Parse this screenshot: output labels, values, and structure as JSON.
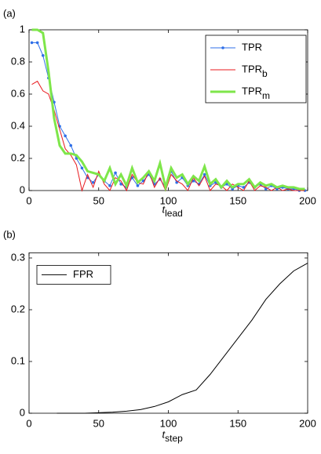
{
  "chart_data": [
    {
      "type": "line",
      "panel_label": "(a)",
      "xlabel": "t",
      "xlabel_subscript": "lead",
      "xlim": [
        0,
        200
      ],
      "ylim": [
        0,
        1
      ],
      "xticks": [
        0,
        50,
        100,
        150,
        200
      ],
      "yticks": [
        0,
        0.2,
        0.4,
        0.6,
        0.8,
        1
      ],
      "legend": "upper right",
      "x": [
        2,
        6,
        10,
        14,
        18,
        22,
        26,
        30,
        34,
        38,
        42,
        46,
        50,
        54,
        58,
        62,
        66,
        70,
        74,
        78,
        82,
        86,
        90,
        94,
        98,
        102,
        106,
        110,
        114,
        118,
        122,
        126,
        130,
        134,
        138,
        142,
        146,
        150,
        154,
        158,
        162,
        166,
        170,
        174,
        178,
        182,
        186,
        190,
        194,
        198
      ],
      "series": [
        {
          "name": "TPR",
          "color": "#2f6fe8",
          "linewidth": 1,
          "markers": true,
          "values": [
            0.92,
            0.92,
            0.84,
            0.7,
            0.55,
            0.4,
            0.34,
            0.28,
            0.2,
            0.14,
            0.08,
            0.05,
            0.1,
            0.06,
            0.03,
            0.11,
            0.04,
            0.02,
            0.08,
            0.03,
            0.06,
            0.1,
            0.04,
            0.07,
            0.02,
            0.12,
            0.05,
            0.08,
            0.03,
            0.06,
            0.04,
            0.1,
            0.03,
            0.05,
            0.02,
            0.04,
            0.01,
            0.03,
            0.02,
            0.05,
            0.02,
            0.04,
            0.01,
            0.03,
            0.01,
            0.02,
            0.01,
            0.01,
            0,
            0
          ]
        },
        {
          "name": "TPR",
          "name_subscript": "b",
          "color": "#e8191e",
          "linewidth": 1,
          "markers": false,
          "values": [
            0.66,
            0.68,
            0.62,
            0.6,
            0.5,
            0.38,
            0.26,
            0.22,
            0.16,
            0,
            0.1,
            0.02,
            0.12,
            0.04,
            0,
            0.08,
            0.06,
            0,
            0.1,
            0.05,
            0.04,
            0.12,
            0.02,
            0.08,
            0,
            0.1,
            0.06,
            0.04,
            0,
            0.08,
            0.03,
            0.09,
            0,
            0.04,
            0.03,
            0,
            0.04,
            0.02,
            0,
            0.06,
            0,
            0.03,
            0.02,
            0,
            0.02,
            0,
            0.01,
            0,
            0,
            0
          ]
        },
        {
          "name": "TPR",
          "name_subscript": "m",
          "color": "#7ee64a",
          "linewidth": 3,
          "markers": false,
          "values": [
            1,
            1,
            0.98,
            0.74,
            0.45,
            0.28,
            0.23,
            0.23,
            0.22,
            0.18,
            0.12,
            0.11,
            0.1,
            0.06,
            0.14,
            0.04,
            0.1,
            0.03,
            0.14,
            0.05,
            0.08,
            0.12,
            0.06,
            0.17,
            0.02,
            0.14,
            0.08,
            0.1,
            0.04,
            0.09,
            0.06,
            0.15,
            0.04,
            0.07,
            0.02,
            0.06,
            0.02,
            0.04,
            0.04,
            0.07,
            0.02,
            0.05,
            0.03,
            0.04,
            0.02,
            0.03,
            0.02,
            0.02,
            0.01,
            0.01
          ]
        }
      ]
    },
    {
      "type": "line",
      "panel_label": "(b)",
      "xlabel": "t",
      "xlabel_subscript": "step",
      "xlim": [
        0,
        200
      ],
      "ylim": [
        0,
        0.31
      ],
      "xticks": [
        0,
        50,
        100,
        150,
        200
      ],
      "yticks": [
        0,
        0.1,
        0.2,
        0.3
      ],
      "legend": "upper left",
      "x": [
        20,
        30,
        40,
        50,
        60,
        70,
        80,
        90,
        100,
        110,
        120,
        130,
        140,
        150,
        160,
        170,
        180,
        190,
        200
      ],
      "series": [
        {
          "name": "FPR",
          "color": "#000000",
          "linewidth": 1,
          "markers": false,
          "values": [
            0,
            0,
            0,
            0.001,
            0.002,
            0.004,
            0.007,
            0.013,
            0.022,
            0.036,
            0.045,
            0.075,
            0.11,
            0.145,
            0.18,
            0.22,
            0.25,
            0.275,
            0.29
          ]
        }
      ]
    }
  ]
}
